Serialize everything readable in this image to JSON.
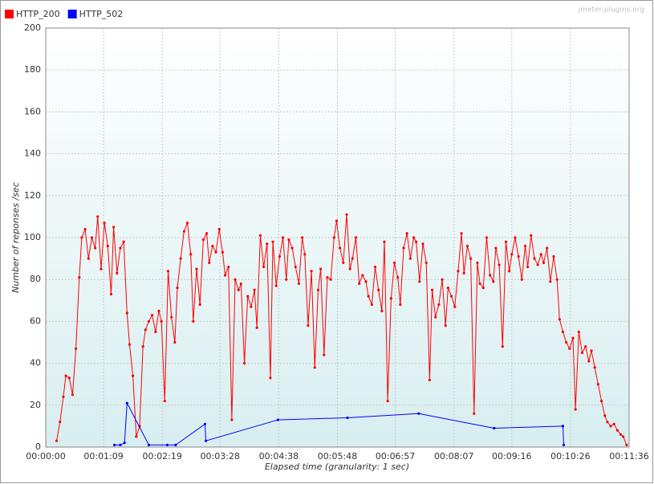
{
  "chart_data": {
    "type": "line",
    "watermark": "jmeter-plugins.org",
    "xlabel": "Elapsed time (granularity: 1 sec)",
    "ylabel": "Number of reponses /sec",
    "xlim": [
      0,
      696
    ],
    "ylim": [
      0,
      200
    ],
    "yticks": [
      0,
      20,
      40,
      60,
      80,
      100,
      120,
      140,
      160,
      180,
      200
    ],
    "xticks": [
      {
        "value": 0,
        "label": "00:00:00"
      },
      {
        "value": 69,
        "label": "00:01:09"
      },
      {
        "value": 139,
        "label": "00:02:19"
      },
      {
        "value": 208,
        "label": "00:03:28"
      },
      {
        "value": 278,
        "label": "00:04:38"
      },
      {
        "value": 348,
        "label": "00:05:48"
      },
      {
        "value": 417,
        "label": "00:06:57"
      },
      {
        "value": 487,
        "label": "00:08:07"
      },
      {
        "value": 556,
        "label": "00:09:16"
      },
      {
        "value": 626,
        "label": "00:10:26"
      },
      {
        "value": 696,
        "label": "00:11:36"
      }
    ],
    "grid": true,
    "series": [
      {
        "name": "HTTP_200",
        "color": "#ff0000",
        "x": [
          13,
          17,
          21,
          24,
          28,
          32,
          36,
          40,
          43,
          47,
          51,
          55,
          59,
          62,
          66,
          70,
          74,
          78,
          81,
          85,
          89,
          93,
          97,
          100,
          104,
          108,
          112,
          116,
          119,
          123,
          127,
          131,
          135,
          138,
          142,
          146,
          150,
          154,
          157,
          161,
          165,
          169,
          173,
          176,
          180,
          184,
          188,
          192,
          195,
          199,
          203,
          207,
          211,
          214,
          218,
          222,
          226,
          230,
          233,
          237,
          241,
          245,
          249,
          252,
          256,
          260,
          264,
          268,
          271,
          275,
          279,
          283,
          287,
          290,
          294,
          298,
          302,
          306,
          309,
          313,
          317,
          321,
          325,
          328,
          332,
          336,
          340,
          344,
          347,
          351,
          355,
          359,
          363,
          366,
          370,
          374,
          378,
          382,
          385,
          389,
          393,
          397,
          401,
          404,
          408,
          412,
          416,
          420,
          423,
          427,
          431,
          435,
          439,
          442,
          446,
          450,
          454,
          458,
          461,
          465,
          469,
          473,
          477,
          480,
          484,
          488,
          492,
          496,
          499,
          503,
          507,
          511,
          515,
          518,
          522,
          526,
          530,
          534,
          537,
          541,
          545,
          549,
          553,
          556,
          560,
          564,
          568,
          572,
          575,
          579,
          583,
          587,
          591,
          594,
          598,
          602,
          606,
          610,
          613,
          617,
          621,
          625,
          629,
          632,
          636,
          640,
          644,
          648,
          651,
          655,
          659,
          663,
          667,
          670,
          674,
          678,
          682,
          686,
          689,
          693
        ],
        "values": [
          3,
          12,
          24,
          34,
          33,
          25,
          47,
          81,
          100,
          104,
          90,
          100,
          95,
          110,
          85,
          107,
          96,
          73,
          105,
          83,
          95,
          98,
          64,
          49,
          34,
          5,
          10,
          48,
          56,
          60,
          63,
          55,
          65,
          60,
          22,
          84,
          62,
          50,
          76,
          90,
          103,
          107,
          92,
          60,
          85,
          68,
          99,
          102,
          88,
          96,
          93,
          104,
          93,
          82,
          86,
          13,
          80,
          75,
          78,
          40,
          72,
          67,
          75,
          57,
          101,
          86,
          97,
          33,
          98,
          77,
          91,
          100,
          80,
          99,
          95,
          86,
          78,
          100,
          92,
          58,
          84,
          38,
          75,
          85,
          44,
          81,
          80,
          100,
          108,
          95,
          88,
          111,
          85,
          90,
          100,
          78,
          82,
          79,
          72,
          68,
          86,
          75,
          65,
          98,
          22,
          71,
          88,
          81,
          68,
          95,
          102,
          90,
          100,
          98,
          79,
          97,
          88,
          32,
          75,
          62,
          68,
          80,
          58,
          76,
          72,
          67,
          84,
          102,
          83,
          96,
          90,
          16,
          88,
          78,
          76,
          100,
          82,
          79,
          95,
          87,
          48,
          98,
          84,
          92,
          100,
          91,
          80,
          96,
          86,
          101,
          90,
          87,
          92,
          88,
          95,
          79,
          91,
          80,
          61,
          55,
          50,
          47,
          52,
          18,
          55,
          45,
          48,
          41,
          46,
          38,
          30,
          22,
          15,
          12,
          10,
          11,
          8,
          6,
          5,
          1
        ]
      },
      {
        "name": "HTTP_502",
        "color": "#0000ff",
        "x": [
          82,
          89,
          94,
          97,
          123,
          145,
          155,
          190,
          191,
          277,
          360,
          445,
          535,
          617,
          618
        ],
        "values": [
          1,
          1,
          2,
          21,
          1,
          1,
          1,
          11,
          3,
          13,
          14,
          16,
          9,
          10,
          1
        ]
      }
    ]
  }
}
